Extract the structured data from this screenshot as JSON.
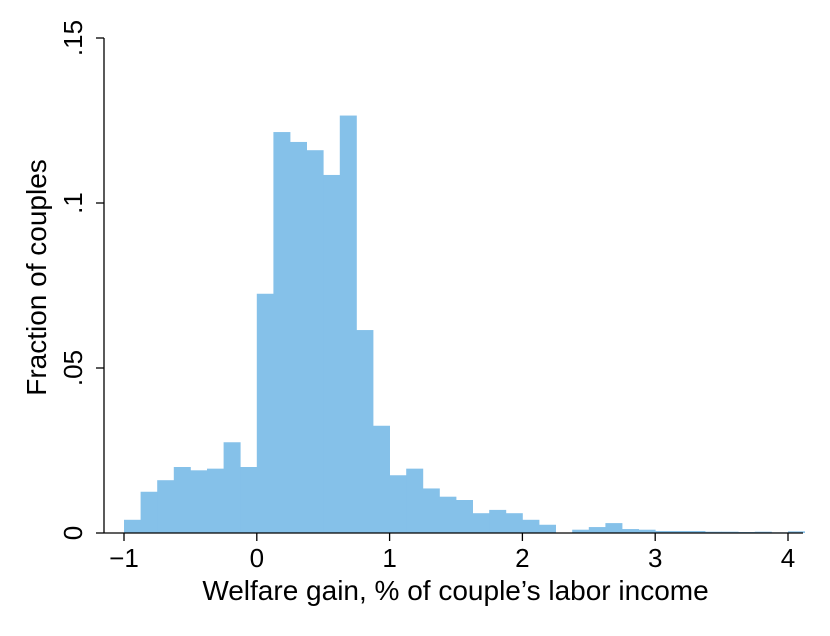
{
  "chart_data": {
    "type": "bar",
    "subtype": "histogram",
    "title": "",
    "xlabel": "Welfare gain, % of couple’s labor income",
    "ylabel": "Fraction of couples",
    "xlim": [
      -1.1,
      4.1
    ],
    "ylim": [
      0,
      0.15
    ],
    "xticks": [
      -1,
      0,
      1,
      2,
      3,
      4
    ],
    "xtick_labels": [
      "−1",
      "0",
      "1",
      "2",
      "3",
      "4"
    ],
    "yticks": [
      0,
      0.05,
      0.1,
      0.15
    ],
    "ytick_labels": [
      "0",
      ".05",
      ".1",
      ".15"
    ],
    "bin_width": 0.125,
    "bin_start": -1.0,
    "values": [
      0.004,
      0.0125,
      0.016,
      0.02,
      0.019,
      0.0195,
      0.0275,
      0.02,
      0.0725,
      0.1215,
      0.1185,
      0.116,
      0.1085,
      0.1265,
      0.0615,
      0.0325,
      0.0175,
      0.0195,
      0.0135,
      0.011,
      0.01,
      0.006,
      0.007,
      0.006,
      0.004,
      0.0025,
      0.0,
      0.001,
      0.0018,
      0.003,
      0.0012,
      0.001,
      0.0006,
      0.0006,
      0.0006,
      0.0004,
      0.0004,
      0.0003,
      0.0004,
      0.0002,
      0.0005
    ],
    "bar_color": "#85C1E9",
    "grid": false,
    "legend": "none"
  }
}
